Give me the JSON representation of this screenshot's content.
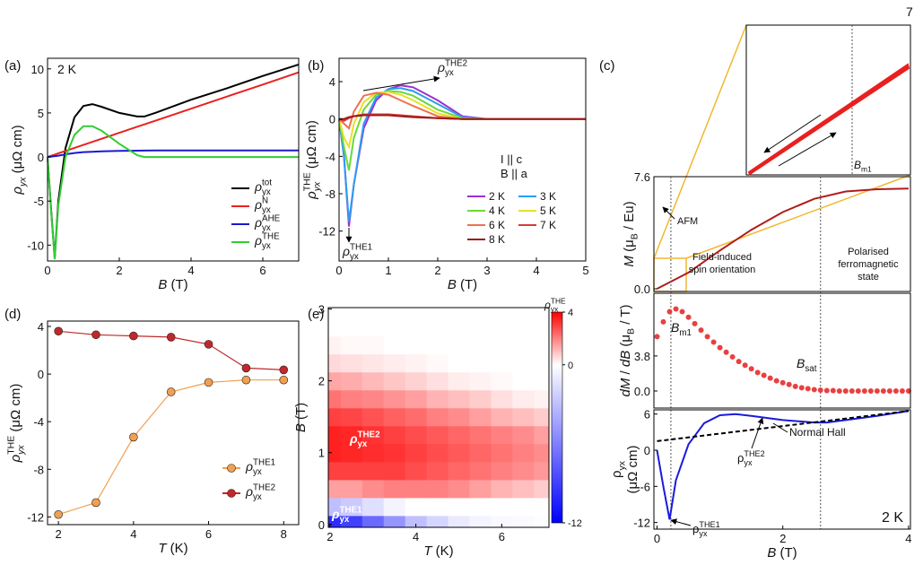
{
  "page_number": "7",
  "chart_data": [
    {
      "type": "line",
      "panel_label": "(a)",
      "xlabel": [
        {
          "t": "B",
          "s": "i"
        },
        {
          "t": " (T)",
          "s": "n"
        }
      ],
      "ylabel": [
        {
          "t": "ρ",
          "s": "i"
        },
        {
          "t": "yx",
          "s": "isub"
        },
        {
          "t": " (μΩ cm)",
          "s": "n"
        }
      ],
      "annotations": [
        [
          {
            "t": "2 K",
            "s": "n"
          }
        ]
      ],
      "xlim": [
        0,
        7
      ],
      "xticks": [
        0,
        2,
        4,
        6
      ],
      "ylim": [
        -11.8,
        11.2
      ],
      "yticks": [
        -10,
        -5,
        0,
        5,
        10
      ],
      "legend": "lower right",
      "x": [
        0,
        0.1,
        0.2,
        0.3,
        0.5,
        0.75,
        1,
        1.25,
        1.5,
        2,
        2.5,
        2.7,
        3,
        4,
        5,
        6,
        7
      ],
      "series": [
        {
          "name": [
            {
              "t": "ρ",
              "s": "i"
            },
            {
              "t": "yx",
              "s": "sub"
            },
            {
              "t": "tot",
              "s": "sup"
            }
          ],
          "color": "#000000",
          "values": [
            0,
            -6,
            -11.5,
            -5,
            1,
            4.5,
            5.8,
            6,
            5.7,
            5,
            4.6,
            4.6,
            5,
            6.5,
            7.8,
            9.2,
            10.5
          ]
        },
        {
          "name": [
            {
              "t": "ρ",
              "s": "i"
            },
            {
              "t": "yx",
              "s": "sub"
            },
            {
              "t": "N",
              "s": "sup"
            }
          ],
          "color": "#e8231e",
          "values": [
            0,
            0.14,
            0.27,
            0.41,
            0.69,
            1.03,
            1.37,
            1.71,
            2.06,
            2.74,
            3.43,
            3.7,
            4.11,
            5.48,
            6.85,
            8.22,
            9.6
          ]
        },
        {
          "name": [
            {
              "t": "ρ",
              "s": "i"
            },
            {
              "t": "yx",
              "s": "sub"
            },
            {
              "t": "AHE",
              "s": "sup"
            }
          ],
          "color": "#1a1acc",
          "values": [
            0,
            0.05,
            0.1,
            0.15,
            0.3,
            0.45,
            0.55,
            0.6,
            0.65,
            0.7,
            0.72,
            0.73,
            0.75,
            0.75,
            0.75,
            0.75,
            0.75
          ]
        },
        {
          "name": [
            {
              "t": "ρ",
              "s": "i"
            },
            {
              "t": "yx",
              "s": "sub"
            },
            {
              "t": "THE",
              "s": "sup"
            }
          ],
          "color": "#33cc33",
          "values": [
            0,
            -6.2,
            -11.6,
            -5.5,
            0,
            2.5,
            3.5,
            3.5,
            3,
            1.5,
            0.2,
            0,
            0,
            0,
            0,
            0,
            0
          ]
        }
      ]
    },
    {
      "type": "line",
      "panel_label": "(b)",
      "xlabel": [
        {
          "t": "B",
          "s": "i"
        },
        {
          "t": " (T)",
          "s": "n"
        }
      ],
      "ylabel": [
        {
          "t": "ρ",
          "s": "i"
        },
        {
          "t": "yx",
          "s": "isub"
        },
        {
          "t": "THE",
          "s": "sup"
        },
        {
          "t": " (μΩ cm)",
          "s": "n"
        }
      ],
      "annotations": [
        [
          {
            "t": "ρ",
            "s": "i"
          },
          {
            "t": "yx",
            "s": "sub"
          },
          {
            "t": "THE2",
            "s": "sup"
          }
        ],
        [
          {
            "t": "ρ",
            "s": "i"
          },
          {
            "t": "yx",
            "s": "sub"
          },
          {
            "t": "THE1",
            "s": "sup"
          }
        ],
        [
          {
            "t": "I || c",
            "s": "n"
          }
        ],
        [
          {
            "t": "B || a",
            "s": "n"
          }
        ]
      ],
      "xlim": [
        0,
        5
      ],
      "xticks": [
        0,
        1,
        2,
        3,
        4,
        5
      ],
      "ylim": [
        -15.2,
        6.5
      ],
      "yticks": [
        -12,
        -8,
        -4,
        0,
        4
      ],
      "legend": "center right",
      "x": [
        0,
        0.1,
        0.2,
        0.3,
        0.5,
        0.75,
        1,
        1.25,
        1.5,
        2,
        2.5,
        3,
        4,
        5
      ],
      "series": [
        {
          "name": "2 K",
          "color": "#9b30d0",
          "values": [
            0,
            -4,
            -11.5,
            -7,
            -1,
            2,
            3.2,
            3.6,
            3.4,
            2,
            0.3,
            0,
            0,
            0
          ]
        },
        {
          "name": "3 K",
          "color": "#2e9cf0",
          "values": [
            0,
            -4,
            -11,
            -7,
            -0.5,
            2.3,
            3.2,
            3.3,
            3,
            1.6,
            0.2,
            0,
            0,
            0
          ]
        },
        {
          "name": "4 K",
          "color": "#6dd83a",
          "values": [
            0,
            -3,
            -5.5,
            -2,
            1,
            2.6,
            3,
            2.9,
            2.5,
            1,
            0.1,
            0,
            0,
            0
          ]
        },
        {
          "name": "5 K",
          "color": "#e8e02a",
          "values": [
            0,
            -2,
            -3,
            -0.5,
            1.8,
            2.8,
            2.9,
            2.6,
            2,
            0.6,
            0,
            0,
            0,
            0
          ]
        },
        {
          "name": "6 K",
          "color": "#f07050",
          "values": [
            0,
            -0.5,
            -1,
            0.8,
            2.5,
            2.8,
            2.6,
            2,
            1.4,
            0.3,
            0,
            0,
            0,
            0
          ]
        },
        {
          "name": "7 K",
          "color": "#d83a3a",
          "values": [
            0,
            -0.2,
            0.1,
            0.3,
            0.5,
            0.5,
            0.5,
            0.4,
            0.3,
            0.1,
            0,
            0,
            0,
            0
          ]
        },
        {
          "name": "8 K",
          "color": "#9b1c1c",
          "values": [
            0,
            0,
            0.2,
            0.3,
            0.4,
            0.4,
            0.4,
            0.3,
            0.2,
            0.1,
            0,
            0,
            0,
            0
          ]
        }
      ]
    },
    {
      "type": "line",
      "panel_label": "(c)",
      "ylabel": [
        {
          "t": "M",
          "s": "i"
        },
        {
          "t": " (μ",
          "s": "n"
        },
        {
          "t": "B",
          "s": "sub"
        },
        {
          "t": " / Eu)",
          "s": "n"
        }
      ],
      "annotations": [
        [
          {
            "t": "AFM",
            "s": "n"
          }
        ],
        [
          {
            "t": "Field-induced",
            "s": "n"
          }
        ],
        [
          {
            "t": "spin orientation",
            "s": "n"
          }
        ],
        [
          {
            "t": "Polarised",
            "s": "n"
          }
        ],
        [
          {
            "t": "ferromagnetic",
            "s": "n"
          }
        ],
        [
          {
            "t": "state",
            "s": "n"
          }
        ],
        [
          {
            "t": "B",
            "s": "i"
          },
          {
            "t": "m1",
            "s": "sub"
          }
        ]
      ],
      "xlim": [
        -0.05,
        4.03
      ],
      "ylim": [
        -0.18,
        7.6
      ],
      "yticks": [
        {
          "value": 0,
          "label": "0.0"
        },
        7.6
      ],
      "vlines": [
        0.22,
        2.6
      ],
      "x": [
        0,
        0.5,
        1,
        1.5,
        2,
        2.5,
        3,
        3.5,
        4
      ],
      "series": [
        {
          "color": "#b01c1c",
          "values": [
            0,
            1.1,
            2.6,
            4,
            5.2,
            6.1,
            6.6,
            6.75,
            6.8
          ]
        }
      ]
    },
    {
      "type": "scatter",
      "ylabel": [
        {
          "t": "dM",
          "s": "i"
        },
        {
          "t": " / ",
          "s": "n"
        },
        {
          "t": "dB",
          "s": "i"
        },
        {
          "t": " (μ",
          "s": "n"
        },
        {
          "t": "B",
          "s": "sub"
        },
        {
          "t": " / T)",
          "s": "n"
        }
      ],
      "annotations": [
        [
          {
            "t": "B",
            "s": "i"
          },
          {
            "t": "m1",
            "s": "sub"
          }
        ],
        [
          {
            "t": "B",
            "s": "i"
          },
          {
            "t": "sat",
            "s": "sub"
          }
        ]
      ],
      "xlim": [
        -0.05,
        4.03
      ],
      "ylim": [
        -1.85,
        10.6
      ],
      "yticks": [
        {
          "value": 0,
          "label": "0.0"
        },
        3.8
      ],
      "x": [
        0,
        0.1,
        0.2,
        0.3,
        0.4,
        0.5,
        0.6,
        0.7,
        0.8,
        0.9,
        1,
        1.1,
        1.2,
        1.3,
        1.4,
        1.5,
        1.6,
        1.7,
        1.8,
        1.9,
        2,
        2.1,
        2.2,
        2.3,
        2.4,
        2.5,
        2.6,
        2.7,
        2.8,
        2.9,
        3,
        3.1,
        3.2,
        3.3,
        3.4,
        3.5,
        3.6,
        3.7,
        3.8,
        3.9,
        4
      ],
      "series": [
        {
          "color": "#e84040",
          "values": [
            5.9,
            7.5,
            8.6,
            8.9,
            8.6,
            8,
            7.3,
            6.6,
            5.9,
            5.3,
            4.7,
            4.2,
            3.7,
            3.2,
            2.8,
            2.4,
            2,
            1.7,
            1.4,
            1.1,
            0.9,
            0.7,
            0.5,
            0.35,
            0.25,
            0.15,
            0.1,
            0.05,
            0.05,
            0,
            0,
            0,
            0,
            0,
            0,
            0,
            0,
            0,
            0,
            0,
            0
          ]
        }
      ]
    },
    {
      "type": "line",
      "xlabel": [
        {
          "t": "B",
          "s": "i"
        },
        {
          "t": " (T)",
          "s": "n"
        }
      ],
      "ylabel": [
        {
          "t": "ρ",
          "s": "n"
        },
        {
          "t": "yx",
          "s": "sub"
        }
      ],
      "ylabel2": [
        {
          "t": "(μΩ cm)",
          "s": "n"
        }
      ],
      "annotations": [
        [
          {
            "t": "Normal Hall",
            "s": "n"
          }
        ],
        [
          {
            "t": "ρ",
            "s": "n"
          },
          {
            "t": "yx",
            "s": "sub"
          },
          {
            "t": "THE2",
            "s": "sup"
          }
        ],
        [
          {
            "t": "ρ",
            "s": "n"
          },
          {
            "t": "yx",
            "s": "sub"
          },
          {
            "t": "THE1",
            "s": "sup"
          }
        ],
        [
          {
            "t": "2 K",
            "s": "n"
          }
        ]
      ],
      "xlim": [
        -0.05,
        4.03
      ],
      "xticks": [
        0,
        2,
        4
      ],
      "ylim": [
        -13.1,
        6.7
      ],
      "yticks": [
        -12,
        -6,
        0,
        6
      ],
      "x": [
        0,
        0.1,
        0.2,
        0.3,
        0.5,
        0.75,
        1,
        1.25,
        1.5,
        2,
        2.5,
        2.7,
        3,
        3.5,
        4
      ],
      "series": [
        {
          "color": "#1a1adc",
          "values": [
            0,
            -6,
            -11.5,
            -5,
            1,
            4.5,
            5.8,
            6,
            5.7,
            5,
            4.6,
            4.6,
            5,
            5.7,
            6.5
          ]
        },
        {
          "color": "#000000",
          "dash": true,
          "x": [
            0,
            4
          ],
          "values": [
            1.5,
            6.5
          ]
        }
      ]
    },
    {
      "type": "line",
      "panel_label": "(d)",
      "markers": true,
      "xlabel": [
        {
          "t": "T",
          "s": "i"
        },
        {
          "t": " (K)",
          "s": "n"
        }
      ],
      "ylabel": [
        {
          "t": "ρ",
          "s": "i"
        },
        {
          "t": "yx",
          "s": "isub"
        },
        {
          "t": "THE",
          "s": "sup"
        },
        {
          "t": " (μΩ cm)",
          "s": "n"
        }
      ],
      "xlim": [
        1.71,
        8.4
      ],
      "xticks": [
        2,
        4,
        6,
        8
      ],
      "ylim": [
        -12.65,
        4.45
      ],
      "yticks": [
        -12,
        -8,
        -4,
        0,
        4
      ],
      "legend": "lower right",
      "x": [
        2,
        3,
        4,
        5,
        6,
        7,
        8
      ],
      "series": [
        {
          "name": [
            {
              "t": "ρ",
              "s": "i"
            },
            {
              "t": "yx",
              "s": "sub"
            },
            {
              "t": "THE1",
              "s": "sup"
            }
          ],
          "color": "#f0a050",
          "values": [
            -11.8,
            -10.8,
            -5.3,
            -1.5,
            -0.7,
            -0.5,
            -0.5
          ]
        },
        {
          "name": [
            {
              "t": "ρ",
              "s": "i"
            },
            {
              "t": "yx",
              "s": "sub"
            },
            {
              "t": "THE2",
              "s": "sup"
            }
          ],
          "color": "#c0282b",
          "values": [
            3.6,
            3.3,
            3.2,
            3.1,
            2.5,
            0.5,
            0.35
          ]
        }
      ]
    },
    {
      "type": "heatmap",
      "panel_label": "(e)",
      "xlabel": [
        {
          "t": "T",
          "s": "i"
        },
        {
          "t": " (K)",
          "s": "n"
        }
      ],
      "ylabel": [
        {
          "t": "B",
          "s": "i"
        },
        {
          "t": " (T)",
          "s": "n"
        }
      ],
      "annotations": [
        [
          {
            "t": "ρ",
            "s": "i"
          },
          {
            "t": "yx",
            "s": "sub"
          },
          {
            "t": "THE2",
            "s": "sup"
          }
        ],
        [
          {
            "t": "ρ",
            "s": "i"
          },
          {
            "t": "yx",
            "s": "sub"
          },
          {
            "t": "THE1",
            "s": "sup"
          }
        ]
      ],
      "colorbar_label": [
        {
          "t": "ρ",
          "s": "i"
        },
        {
          "t": "yx",
          "s": "sub"
        },
        {
          "t": "THE",
          "s": "sup"
        }
      ],
      "xlim": [
        1.96,
        7.1
      ],
      "xticks": [
        2,
        4,
        6
      ],
      "ylim": [
        -0.04,
        3.02
      ],
      "yticks": [
        0,
        1,
        2,
        3
      ],
      "clim": [
        -12,
        4
      ],
      "cticks": [
        4,
        0,
        -12
      ],
      "cmap_colors": [
        "#0000ff",
        "#ffffff",
        "#ff0000"
      ],
      "x": [
        2,
        2.5,
        3,
        3.5,
        4,
        4.5,
        5,
        5.5,
        6,
        6.5,
        7
      ],
      "y": [
        0,
        0.25,
        0.5,
        0.75,
        1,
        1.25,
        1.5,
        1.75,
        2,
        2.25,
        2.5,
        2.75,
        3
      ],
      "z": [
        [
          -10,
          -9,
          -7,
          -5,
          -3,
          -2,
          -1,
          -0.5,
          -0.3,
          -0.2,
          -0.1
        ],
        [
          -3,
          -2.5,
          -1.5,
          -0.5,
          0,
          0,
          0,
          0,
          0,
          0,
          0
        ],
        [
          1.5,
          1.5,
          1.8,
          2,
          2,
          2,
          1.8,
          1.5,
          1.2,
          1,
          0.8
        ],
        [
          3,
          3,
          3,
          3,
          2.8,
          2.6,
          2.4,
          2.2,
          2,
          1.8,
          1.6
        ],
        [
          3.5,
          3.4,
          3.3,
          3.2,
          3,
          2.8,
          2.6,
          2.4,
          2.2,
          2,
          1.8
        ],
        [
          3.5,
          3.4,
          3.2,
          3,
          2.8,
          2.6,
          2.4,
          2.2,
          2,
          1.8,
          1.5
        ],
        [
          3,
          2.9,
          2.7,
          2.5,
          2.3,
          2,
          1.8,
          1.5,
          1.2,
          1,
          0.8
        ],
        [
          2.2,
          2,
          1.9,
          1.7,
          1.5,
          1.2,
          1,
          0.8,
          0.5,
          0.3,
          0.2
        ],
        [
          1.4,
          1.3,
          1.1,
          0.9,
          0.7,
          0.5,
          0.3,
          0.2,
          0.1,
          0,
          0
        ],
        [
          0.6,
          0.5,
          0.4,
          0.3,
          0.2,
          0.1,
          0,
          0,
          0,
          0,
          0
        ],
        [
          0.2,
          0.1,
          0.1,
          0,
          0,
          0,
          0,
          0,
          0,
          0,
          0
        ],
        [
          0,
          0,
          0,
          0,
          0,
          0,
          0,
          0,
          0,
          0,
          0
        ],
        [
          0,
          0,
          0,
          0,
          0,
          0,
          0,
          0,
          0,
          0,
          0
        ]
      ]
    }
  ]
}
